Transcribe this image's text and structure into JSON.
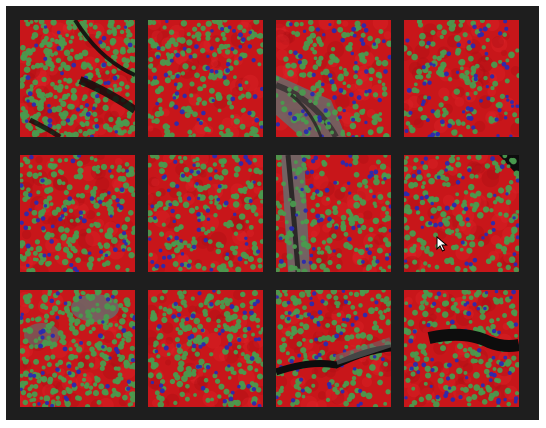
{
  "panel": {
    "rows": 3,
    "cols": 4
  },
  "colors": {
    "frame_bg": "#1e1e1e",
    "tissue_red": "#c8161a",
    "cell_green": "#4a9a4e",
    "cell_blue": "#2a2ab0",
    "dark_gap": "#0d0d0d",
    "grey_region": "#6a6a6a"
  },
  "tiles": [
    {
      "id": "r1c1",
      "green_density": 0.55,
      "blue_density": 0.05,
      "dark_feature": "diagonal-crack"
    },
    {
      "id": "r1c2",
      "green_density": 0.25,
      "blue_density": 0.1,
      "dark_feature": "none"
    },
    {
      "id": "r1c3",
      "green_density": 0.2,
      "blue_density": 0.12,
      "dark_feature": "grey-diagonal-band"
    },
    {
      "id": "r1c4",
      "green_density": 0.12,
      "blue_density": 0.14,
      "dark_feature": "none"
    },
    {
      "id": "r2c1",
      "green_density": 0.3,
      "blue_density": 0.1,
      "dark_feature": "none"
    },
    {
      "id": "r2c2",
      "green_density": 0.25,
      "blue_density": 0.12,
      "dark_feature": "none"
    },
    {
      "id": "r2c3",
      "green_density": 0.2,
      "blue_density": 0.1,
      "dark_feature": "grey-vertical-band"
    },
    {
      "id": "r2c4",
      "green_density": 0.25,
      "blue_density": 0.08,
      "dark_feature": "top-right-dark-corner"
    },
    {
      "id": "r3c1",
      "green_density": 0.45,
      "blue_density": 0.08,
      "dark_feature": "grey-patches"
    },
    {
      "id": "r3c2",
      "green_density": 0.3,
      "blue_density": 0.1,
      "dark_feature": "none"
    },
    {
      "id": "r3c3",
      "green_density": 0.25,
      "blue_density": 0.1,
      "dark_feature": "horizontal-crack"
    },
    {
      "id": "r3c4",
      "green_density": 0.25,
      "blue_density": 0.12,
      "dark_feature": "horizontal-crack-wide"
    }
  ],
  "cursor": {
    "icon": "mouse-pointer-icon",
    "visible": true
  }
}
